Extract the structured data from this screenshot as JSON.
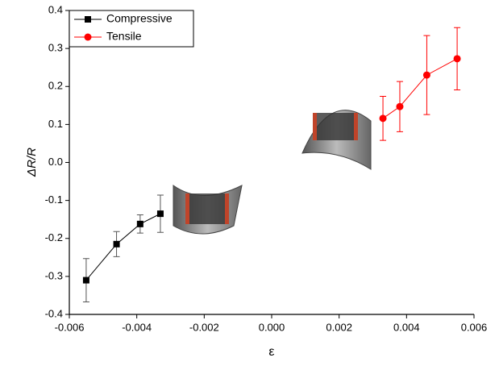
{
  "chart_data": {
    "type": "line",
    "x_label": "ε",
    "y_label": "ΔR/R",
    "xlim": [
      -0.006,
      0.006
    ],
    "xticks": [
      -0.006,
      -0.004,
      -0.002,
      {
        "value": 0,
        "label": "0.000"
      },
      0.002,
      0.004,
      0.006
    ],
    "ylim": [
      -0.4,
      0.4
    ],
    "yticks": [
      -0.4,
      -0.3,
      -0.2,
      -0.1,
      {
        "value": 0,
        "label": "0.0"
      },
      0.1,
      0.2,
      0.3,
      0.4
    ],
    "legend": "upper left",
    "series": [
      {
        "name": "Compressive",
        "color": "#000000",
        "marker": "square",
        "x": [
          -0.0055,
          -0.0046,
          -0.0039,
          -0.0033
        ],
        "values": [
          -0.31,
          -0.215,
          -0.162,
          -0.135
        ],
        "errors": [
          0.057,
          0.033,
          0.024,
          0.049
        ]
      },
      {
        "name": "Tensile",
        "color": "#ff0000",
        "marker": "circle",
        "x": [
          0.0033,
          0.0038,
          0.0046,
          0.0055
        ],
        "values": [
          0.116,
          0.147,
          0.23,
          0.273
        ],
        "errors": [
          0.058,
          0.066,
          0.104,
          0.082
        ]
      }
    ]
  }
}
